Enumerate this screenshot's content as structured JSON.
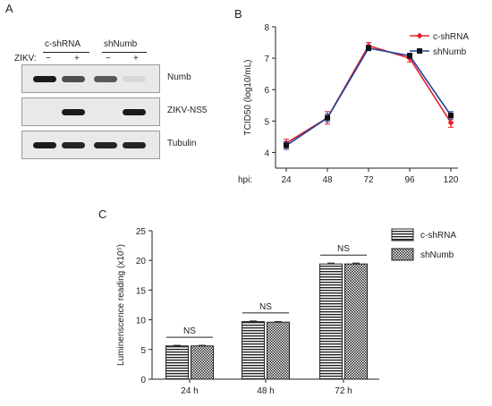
{
  "panels": {
    "a": "A",
    "b": "B",
    "c": "C"
  },
  "blot": {
    "groups": [
      "c-shRNA",
      "shNumb"
    ],
    "zikv_label": "ZIKV:",
    "lane_signs": [
      "−",
      "+",
      "−",
      "+"
    ],
    "rows": [
      {
        "name": "Numb",
        "intensity": [
          1.0,
          0.75,
          0.7,
          0.08
        ]
      },
      {
        "name": "ZIKV-NS5",
        "intensity": [
          0.0,
          1.0,
          0.0,
          1.0
        ]
      },
      {
        "name": "Tubulin",
        "intensity": [
          1.0,
          0.95,
          0.95,
          0.95
        ]
      }
    ]
  },
  "chart_data": [
    {
      "type": "line",
      "x": [
        24,
        48,
        72,
        96,
        120
      ],
      "xlabel_prefix": "hpi:",
      "ylabel": "TCID50 (log10/mL)",
      "ylim": [
        3.5,
        8
      ],
      "yticks": [
        4,
        5,
        6,
        7,
        8
      ],
      "legend_position": "top-right",
      "series": [
        {
          "name": "c-shRNA",
          "color": "#e8202a",
          "values": [
            4.3,
            5.1,
            7.4,
            7.0,
            4.95
          ],
          "errors": [
            0.12,
            0.2,
            0.1,
            0.12,
            0.15
          ]
        },
        {
          "name": "shNumb",
          "color": "#1f3f9a",
          "values": [
            4.22,
            5.1,
            7.32,
            7.08,
            5.18
          ],
          "errors": [
            0.12,
            0.12,
            0.08,
            0.08,
            0.12
          ]
        }
      ]
    },
    {
      "type": "bar",
      "categories": [
        "24 h",
        "48 h",
        "72 h"
      ],
      "ylabel": "Luminenscence reading (x10⁵)",
      "ylim": [
        0,
        25
      ],
      "yticks": [
        0,
        5,
        10,
        15,
        20,
        25
      ],
      "legend_position": "top-right",
      "annotations": [
        "NS",
        "NS",
        "NS"
      ],
      "series": [
        {
          "name": "c-shRNA",
          "pattern": "horizontal-stripes",
          "values": [
            5.6,
            9.7,
            19.4
          ],
          "errors": [
            0.1,
            0.1,
            0.15
          ]
        },
        {
          "name": "shNumb",
          "pattern": "checker",
          "values": [
            5.6,
            9.6,
            19.4
          ],
          "errors": [
            0.1,
            0.1,
            0.15
          ]
        }
      ]
    }
  ]
}
